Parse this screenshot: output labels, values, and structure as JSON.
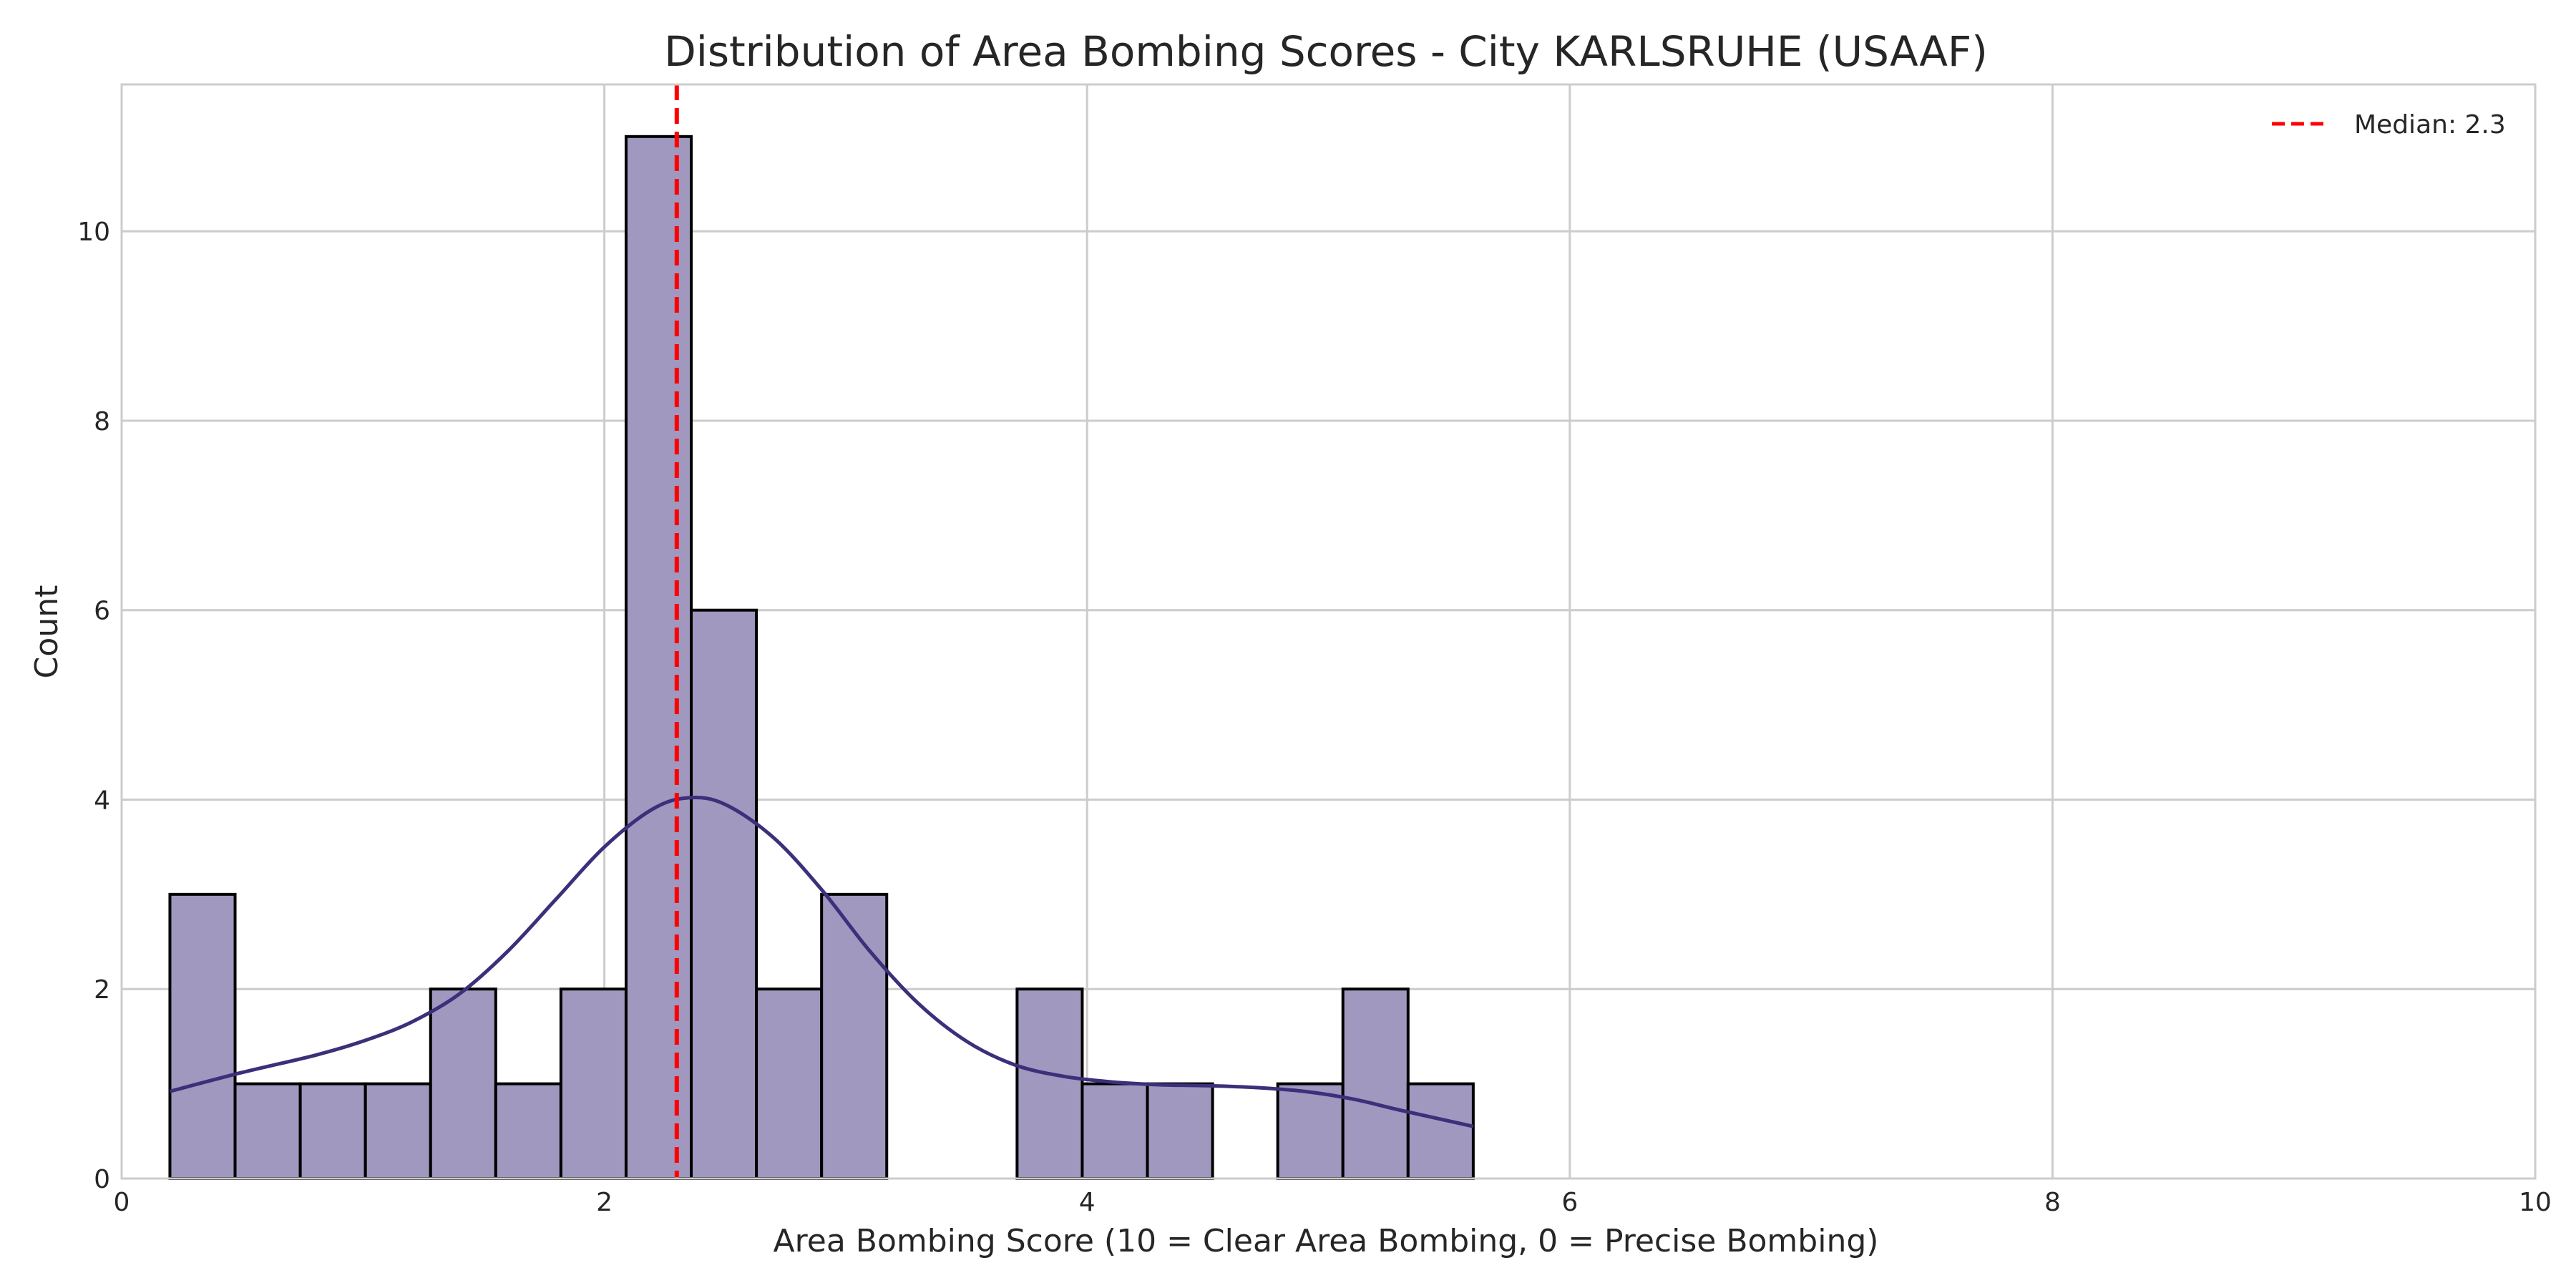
{
  "chart_data": {
    "type": "bar",
    "title": "Distribution of Area Bombing Scores - City KARLSRUHE (USAAF)",
    "xlabel": "Area Bombing Score (10 = Clear Area Bombing, 0 = Precise Bombing)",
    "ylabel": "Count",
    "xlim": [
      0,
      10
    ],
    "ylim": [
      0,
      11.55
    ],
    "xticks": [
      "0",
      "2",
      "4",
      "6",
      "8",
      "10"
    ],
    "yticks": [
      "0",
      "2",
      "4",
      "6",
      "8",
      "10"
    ],
    "grid": true,
    "legend_position": "top-right",
    "bins": [
      {
        "x0": 0.2,
        "x1": 0.47,
        "count": 3
      },
      {
        "x0": 0.47,
        "x1": 0.74,
        "count": 1
      },
      {
        "x0": 0.74,
        "x1": 1.01,
        "count": 1
      },
      {
        "x0": 1.01,
        "x1": 1.28,
        "count": 1
      },
      {
        "x0": 1.28,
        "x1": 1.55,
        "count": 2
      },
      {
        "x0": 1.55,
        "x1": 1.82,
        "count": 1
      },
      {
        "x0": 1.82,
        "x1": 2.09,
        "count": 2
      },
      {
        "x0": 2.09,
        "x1": 2.36,
        "count": 11
      },
      {
        "x0": 2.36,
        "x1": 2.63,
        "count": 6
      },
      {
        "x0": 2.63,
        "x1": 2.9,
        "count": 2
      },
      {
        "x0": 2.9,
        "x1": 3.17,
        "count": 3
      },
      {
        "x0": 3.17,
        "x1": 3.44,
        "count": 0
      },
      {
        "x0": 3.44,
        "x1": 3.71,
        "count": 0
      },
      {
        "x0": 3.71,
        "x1": 3.98,
        "count": 2
      },
      {
        "x0": 3.98,
        "x1": 4.25,
        "count": 1
      },
      {
        "x0": 4.25,
        "x1": 4.52,
        "count": 1
      },
      {
        "x0": 4.52,
        "x1": 4.79,
        "count": 0
      },
      {
        "x0": 4.79,
        "x1": 5.06,
        "count": 1
      },
      {
        "x0": 5.06,
        "x1": 5.33,
        "count": 2
      },
      {
        "x0": 5.33,
        "x1": 5.6,
        "count": 1
      }
    ],
    "kde": {
      "x": [
        0.2,
        0.5,
        0.8,
        1.0,
        1.2,
        1.4,
        1.6,
        1.8,
        2.0,
        2.2,
        2.35,
        2.5,
        2.7,
        2.9,
        3.1,
        3.3,
        3.5,
        3.7,
        3.9,
        4.1,
        4.3,
        4.5,
        4.7,
        4.9,
        5.1,
        5.3,
        5.6
      ],
      "y": [
        0.92,
        1.12,
        1.3,
        1.45,
        1.65,
        1.95,
        2.4,
        2.95,
        3.5,
        3.9,
        4.02,
        3.95,
        3.6,
        3.05,
        2.4,
        1.85,
        1.45,
        1.2,
        1.08,
        1.02,
        0.99,
        0.98,
        0.96,
        0.92,
        0.84,
        0.72,
        0.55
      ]
    },
    "median": 2.3,
    "median_label": "Median: 2.3",
    "colors": {
      "bar_fill": "#a098bf",
      "bar_edge": "#000000",
      "kde_line": "#3d2f7a",
      "median_line": "#ff0000",
      "grid": "#cccccc"
    }
  }
}
